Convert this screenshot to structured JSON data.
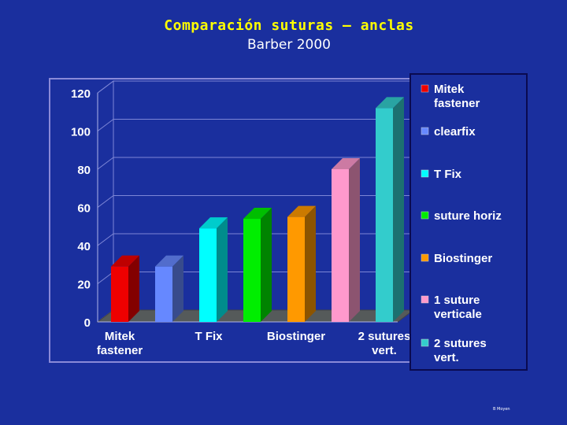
{
  "slide": {
    "title": "Comparación suturas – anclas",
    "subtitle": "Barber 2000",
    "credit": "B Moyen"
  },
  "chart_data": {
    "type": "bar",
    "categories_axis": [
      "Mitek fastener",
      "T Fix",
      "Biostinger",
      "2 sutures vert."
    ],
    "ylim": [
      0,
      120
    ],
    "yticks": [
      0,
      20,
      40,
      60,
      80,
      100,
      120
    ],
    "grid": true,
    "legend_position": "right",
    "three_d": true,
    "series": [
      {
        "name": "Mitek fastener",
        "value": 29,
        "color": "#ee0000"
      },
      {
        "name": "clearfix",
        "value": 29,
        "color": "#6688ff"
      },
      {
        "name": "T Fix",
        "value": 49,
        "color": "#00ffff"
      },
      {
        "name": "suture horiz",
        "value": 54,
        "color": "#00ee00"
      },
      {
        "name": "Biostinger",
        "value": 55,
        "color": "#ff9900"
      },
      {
        "name": "1 suture verticale",
        "value": 80,
        "color": "#ff99cc"
      },
      {
        "name": "2 sutures vert.",
        "value": 112,
        "color": "#33cccc"
      }
    ],
    "legend": [
      {
        "lines": [
          "Mitek",
          "fastener"
        ],
        "color": "#ee0000"
      },
      {
        "lines": [
          "clearfix"
        ],
        "color": "#6688ff"
      },
      {
        "lines": [
          "T Fix"
        ],
        "color": "#00ffff"
      },
      {
        "lines": [
          "suture horiz"
        ],
        "color": "#00ee00"
      },
      {
        "lines": [
          "Biostinger"
        ],
        "color": "#ff9900"
      },
      {
        "lines": [
          "1 suture",
          "verticale"
        ],
        "color": "#ff99cc"
      },
      {
        "lines": [
          "2 sutures",
          "vert."
        ],
        "color": "#33cccc"
      }
    ],
    "x_tick_labels": [
      {
        "lines": [
          "Mitek",
          "fastener"
        ]
      },
      {
        "lines": [
          "T Fix"
        ]
      },
      {
        "lines": [
          "Biostinger"
        ]
      },
      {
        "lines": [
          "2 sutures",
          "vert."
        ]
      }
    ]
  }
}
